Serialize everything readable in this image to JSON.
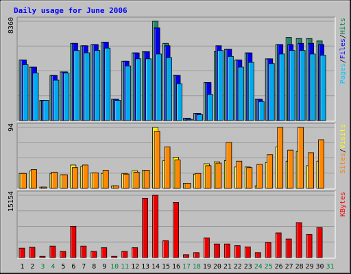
{
  "chart_data": {
    "type": "bar",
    "title": "Daily usage for June 2006",
    "days": [
      "1",
      "2",
      "3",
      "4",
      "5",
      "6",
      "7",
      "8",
      "9",
      "10",
      "11",
      "12",
      "13",
      "14",
      "15",
      "16",
      "17",
      "18",
      "19",
      "20",
      "21",
      "22",
      "23",
      "24",
      "25",
      "26",
      "27",
      "28",
      "29",
      "30",
      "31"
    ],
    "weekend_days": [
      "3",
      "4",
      "10",
      "11",
      "17",
      "18",
      "24",
      "25",
      "31"
    ],
    "panels": [
      {
        "name": "hits-files-pages",
        "max_label": "8360",
        "ymax": 8360,
        "legend": [
          {
            "text": "Pages",
            "color": "#00c8ff"
          },
          {
            "text": "/",
            "color": "#000000"
          },
          {
            "text": "Files",
            "color": "#0000ff"
          },
          {
            "text": "/",
            "color": "#000000"
          },
          {
            "text": "Hits",
            "color": "#008040"
          }
        ],
        "series": [
          {
            "name": "Hits",
            "color": "#22886a",
            "offset": 0,
            "values": [
              5100,
              4500,
              1700,
              3800,
              4100,
              6500,
              6300,
              6400,
              6600,
              1800,
              5000,
              5700,
              5800,
              8360,
              6500,
              3800,
              200,
              600,
              3200,
              5800,
              6000,
              5100,
              5700,
              1800,
              5200,
              6400,
              7000,
              6900,
              6900,
              6700,
              0
            ]
          },
          {
            "name": "Files",
            "color": "#0000ee",
            "offset": 1,
            "values": [
              5100,
              4500,
              1700,
              3800,
              4100,
              6500,
              6300,
              6400,
              6600,
              1800,
              5000,
              5700,
              5800,
              7800,
              6300,
              3800,
              200,
              600,
              3200,
              6300,
              6000,
              5100,
              5700,
              1800,
              5200,
              6400,
              6400,
              6500,
              6500,
              6400,
              0
            ]
          },
          {
            "name": "Pages",
            "color": "#00aaee",
            "offset": 2,
            "values": [
              4700,
              4000,
              1700,
              3400,
              4000,
              5900,
              5700,
              5900,
              6100,
              1700,
              4600,
              5200,
              5200,
              5600,
              5300,
              3100,
              100,
              500,
              2200,
              5900,
              5400,
              4500,
              4900,
              1600,
              4800,
              5600,
              5900,
              5900,
              5600,
              5500,
              0
            ]
          }
        ]
      },
      {
        "name": "visits-sites",
        "max_label": "94",
        "ymax": 94,
        "legend": [
          {
            "text": "Sites",
            "color": "#ff8000"
          },
          {
            "text": "/",
            "color": "#000000"
          },
          {
            "text": "Visits",
            "color": "#ffff00"
          }
        ],
        "series": [
          {
            "name": "Visits",
            "color": "#ffee00",
            "offset": 0,
            "values": [
              23,
              27,
              2,
              23,
              21,
              36,
              34,
              24,
              23,
              4,
              23,
              27,
              28,
              94,
              43,
              48,
              8,
              22,
              38,
              41,
              43,
              33,
              33,
              4,
              40,
              64,
              42,
              57,
              35,
              42,
              0
            ]
          },
          {
            "name": "Sites",
            "color": "#ff8800",
            "offset": 1,
            "values": [
              23,
              29,
              2,
              25,
              21,
              32,
              36,
              24,
              28,
              4,
              22,
              25,
              28,
              88,
              64,
              44,
              8,
              23,
              35,
              39,
              71,
              42,
              32,
              37,
              52,
              94,
              59,
              94,
              55,
              75,
              0
            ]
          }
        ]
      },
      {
        "name": "kbytes",
        "max_label": "15154",
        "ymax": 15154,
        "legend": [
          {
            "text": "KBytes",
            "color": "#ff0000"
          }
        ],
        "series": [
          {
            "name": "KBytes",
            "color": "#ee0000",
            "offset": 0,
            "values": [
              2300,
              2500,
              300,
              2800,
              1500,
              7600,
              2800,
              1500,
              2400,
              300,
              1500,
              2400,
              14400,
              15154,
              4100,
              13400,
              700,
              1200,
              4800,
              3300,
              3300,
              2900,
              2600,
              1200,
              3700,
              6000,
              4500,
              8500,
              5600,
              7300,
              0
            ]
          }
        ]
      }
    ]
  }
}
